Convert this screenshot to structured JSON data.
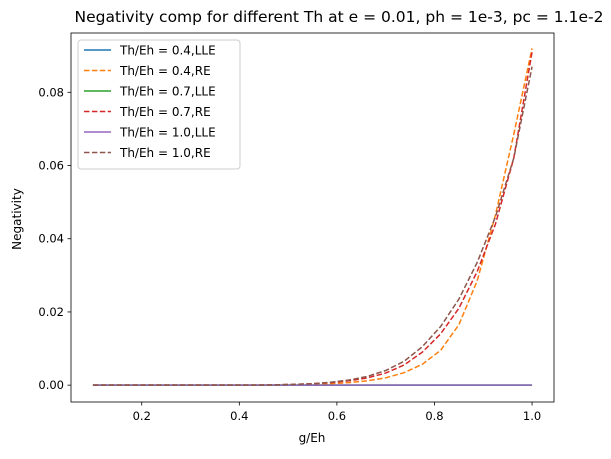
{
  "chart_data": {
    "type": "line",
    "title": "Negativity comp for different Th at e = 0.01, ph = 1e-3, pc = 1.1e-2",
    "xlabel": "g/Eh",
    "ylabel": "Negativity",
    "xlim": [
      0.055,
      1.045
    ],
    "ylim": [
      -0.0046,
      0.0962
    ],
    "x_ticks": [
      0.2,
      0.4,
      0.6,
      0.8,
      1.0
    ],
    "x_tick_labels": [
      "0.2",
      "0.4",
      "0.6",
      "0.8",
      "1.0"
    ],
    "y_ticks": [
      0.0,
      0.02,
      0.04,
      0.06,
      0.08
    ],
    "y_tick_labels": [
      "0.00",
      "0.02",
      "0.04",
      "0.06",
      "0.08"
    ],
    "grid": false,
    "legend_position": "upper-left",
    "x": [
      0.1,
      0.1375,
      0.175,
      0.2125,
      0.25,
      0.2875,
      0.325,
      0.3625,
      0.4,
      0.4375,
      0.475,
      0.5125,
      0.55,
      0.5875,
      0.625,
      0.6625,
      0.7,
      0.7375,
      0.775,
      0.8125,
      0.85,
      0.8875,
      0.925,
      0.9625,
      1.0
    ],
    "series": [
      {
        "name": "Th/Eh = 0.4,LLE",
        "color": "#1f77b4",
        "dashed": false,
        "values": [
          0,
          0,
          0,
          0,
          0,
          0,
          0,
          0,
          0,
          0,
          0,
          0,
          0,
          0,
          0,
          0,
          0,
          0,
          0,
          0,
          0,
          0,
          0,
          0,
          0
        ]
      },
      {
        "name": "Th/Eh = 0.4,RE",
        "color": "#ff7f0e",
        "dashed": true,
        "values": [
          0,
          0,
          0,
          0,
          0,
          0,
          0,
          0,
          0,
          0,
          0,
          0.0001,
          0.0002,
          0.0004,
          0.0007,
          0.0012,
          0.002,
          0.0034,
          0.0057,
          0.0095,
          0.0165,
          0.0285,
          0.0465,
          0.0685,
          0.092
        ]
      },
      {
        "name": "Th/Eh = 0.7,LLE",
        "color": "#2ca02c",
        "dashed": false,
        "values": [
          0,
          0,
          0,
          0,
          0,
          0,
          0,
          0,
          0,
          0,
          0,
          0,
          0,
          0,
          0,
          0,
          0,
          0,
          0,
          0,
          0,
          0,
          0,
          0,
          0
        ]
      },
      {
        "name": "Th/Eh = 0.7,RE",
        "color": "#d62728",
        "dashed": true,
        "values": [
          0,
          0,
          0,
          0,
          0,
          0,
          0,
          0,
          0,
          0,
          0.0001,
          0.0002,
          0.0004,
          0.0007,
          0.0012,
          0.002,
          0.0033,
          0.0055,
          0.009,
          0.014,
          0.021,
          0.031,
          0.044,
          0.062,
          0.091
        ]
      },
      {
        "name": "Th/Eh = 1.0,LLE",
        "color": "#9467bd",
        "dashed": false,
        "values": [
          0,
          0,
          0,
          0,
          0,
          0,
          0,
          0,
          0,
          0,
          0,
          0,
          0,
          0,
          0,
          0,
          0,
          0,
          0,
          0,
          0,
          0,
          0,
          0,
          0
        ]
      },
      {
        "name": "Th/Eh = 1.0,RE",
        "color": "#8c564b",
        "dashed": true,
        "values": [
          0,
          0,
          0,
          0,
          0,
          0,
          0,
          0,
          0,
          0,
          0.0001,
          0.0002,
          0.0004,
          0.0008,
          0.0014,
          0.0024,
          0.004,
          0.0065,
          0.0105,
          0.016,
          0.0235,
          0.0335,
          0.046,
          0.062,
          0.087
        ]
      }
    ]
  }
}
